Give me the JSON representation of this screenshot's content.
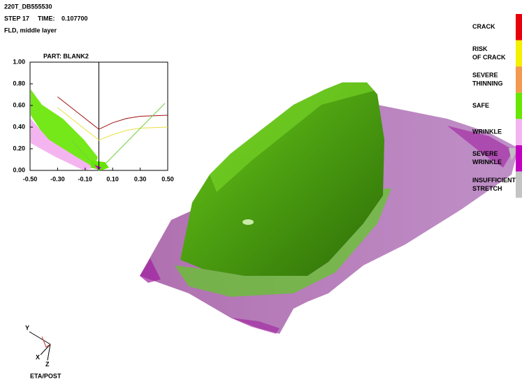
{
  "header": {
    "title": "220T_DB555530",
    "step": "STEP 17",
    "time_label": "TIME:",
    "time": "0.107700",
    "result": "FLD, middle layer"
  },
  "legend": [
    {
      "lines": [
        "CRACK"
      ],
      "color": "#e8000a"
    },
    {
      "lines": [
        "RISK",
        "OF CRACK"
      ],
      "color": "#f4f000"
    },
    {
      "lines": [
        "SEVERE",
        "THINNING"
      ],
      "color": "#f49a50"
    },
    {
      "lines": [
        "SAFE"
      ],
      "color": "#66e600"
    },
    {
      "lines": [
        "WRINKLE"
      ],
      "color": "#f4b4f0"
    },
    {
      "lines": [
        "SEVERE",
        "WRINKLE"
      ],
      "color": "#c400c0"
    },
    {
      "lines": [
        "INSUFFICIENT",
        "STRETCH"
      ],
      "color": "#c4c4c4"
    }
  ],
  "fld_plot": {
    "part": "PART:  BLANK2",
    "xlim": [
      -0.5,
      0.5
    ],
    "ylim": [
      0,
      1
    ],
    "xticks": [
      {
        "value": -0.5,
        "label": "-0.50"
      },
      {
        "value": -0.3,
        "label": "-0.30"
      },
      {
        "value": -0.1,
        "label": "-0.10"
      },
      {
        "value": 0.1,
        "label": "0.10"
      },
      {
        "value": 0.3,
        "label": "0.30"
      },
      {
        "value": 0.5,
        "label": "0.50"
      }
    ],
    "yticks": [
      {
        "value": 0,
        "label": "0.00"
      },
      {
        "value": 0.2,
        "label": "0.20"
      },
      {
        "value": 0.4,
        "label": "0.40"
      },
      {
        "value": 0.6,
        "label": "0.60"
      },
      {
        "value": 0.8,
        "label": "0.80"
      },
      {
        "value": 1,
        "label": "1.00"
      }
    ],
    "curves": [
      {
        "color": "#a01010",
        "x": [
          -0.3,
          0,
          0.1,
          0.2,
          0.3,
          0.5
        ],
        "y": [
          0.68,
          0.38,
          0.44,
          0.48,
          0.5,
          0.51
        ]
      },
      {
        "color": "#e8e040",
        "x": [
          -0.3,
          0,
          0.1,
          0.2,
          0.3,
          0.5
        ],
        "y": [
          0.58,
          0.28,
          0.33,
          0.37,
          0.39,
          0.4
        ]
      },
      {
        "color": "#70d040",
        "x": [
          -0.2,
          0,
          0.48
        ],
        "y": [
          0.28,
          0,
          0.62
        ]
      }
    ]
  },
  "triad": {
    "y": "Y",
    "x": "X",
    "z": "Z"
  },
  "footer": "ETA/POST"
}
